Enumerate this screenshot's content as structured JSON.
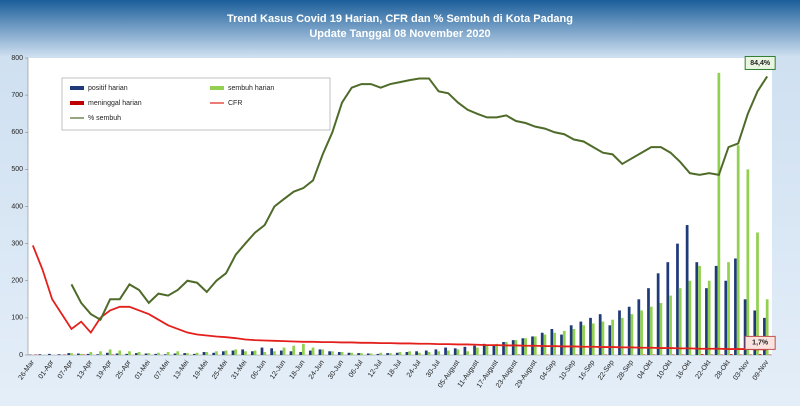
{
  "chart_data": {
    "type": "bar",
    "title": "Trend Kasus Covid 19 Harian, CFR dan % Sembuh di Kota Padang",
    "subtitle": "Update Tanggal 08 November  2020",
    "categories": [
      "26-Mar",
      null,
      "01-Apr",
      null,
      "07-Apr",
      null,
      "13-Apr",
      null,
      "19-Apr",
      null,
      "25-Apr",
      null,
      "01-Mei",
      null,
      "07-Mei",
      null,
      "13-Mei",
      null,
      "19-Mei",
      null,
      "25-Mei",
      null,
      "31-Mei",
      null,
      "06-Jun",
      null,
      "12-Jun",
      null,
      "18-Jun",
      null,
      "24-Jun",
      null,
      "30-Jun",
      null,
      "06-Jul",
      null,
      "12-Jul",
      null,
      "18-Jul",
      null,
      "24-Jul",
      null,
      "30-Jul",
      null,
      "05-August",
      null,
      "11-August",
      null,
      "17-August",
      null,
      "23-August",
      null,
      "29-August",
      null,
      "04-Sep",
      null,
      "10-Sep",
      null,
      "16-Sep",
      null,
      "22-Sep",
      null,
      "28-Sep",
      null,
      "04-Okt",
      null,
      "10-Okt",
      null,
      "16-Okt",
      null,
      "22-Okt",
      null,
      "28-Okt",
      null,
      "03-Nov",
      null,
      "09-Nov"
    ],
    "series": [
      {
        "name": "positif harian",
        "type": "bar",
        "color": "#1f3a78",
        "values": [
          1,
          2,
          3,
          2,
          5,
          4,
          3,
          2,
          6,
          4,
          3,
          5,
          4,
          3,
          2,
          4,
          5,
          3,
          8,
          6,
          10,
          12,
          15,
          10,
          20,
          18,
          12,
          10,
          8,
          12,
          15,
          10,
          8,
          6,
          5,
          4,
          3,
          5,
          6,
          8,
          10,
          12,
          15,
          20,
          18,
          22,
          25,
          30,
          28,
          35,
          40,
          45,
          50,
          60,
          70,
          55,
          80,
          90,
          100,
          110,
          80,
          120,
          130,
          150,
          180,
          220,
          250,
          300,
          350,
          250,
          180,
          240,
          200,
          260,
          150,
          120,
          100
        ]
      },
      {
        "name": "sembuh harian",
        "type": "bar",
        "color": "#92d050",
        "values": [
          0,
          0,
          0,
          0,
          5,
          3,
          8,
          10,
          15,
          12,
          10,
          8,
          5,
          6,
          8,
          10,
          5,
          6,
          8,
          10,
          12,
          15,
          10,
          12,
          8,
          10,
          20,
          25,
          30,
          20,
          15,
          10,
          8,
          6,
          5,
          4,
          6,
          5,
          8,
          10,
          6,
          8,
          10,
          12,
          15,
          10,
          20,
          25,
          30,
          35,
          40,
          45,
          50,
          55,
          60,
          65,
          70,
          80,
          85,
          90,
          95,
          100,
          110,
          120,
          130,
          140,
          160,
          180,
          200,
          240,
          200,
          760,
          250,
          565,
          500,
          330,
          150
        ]
      },
      {
        "name": "meninggal harian",
        "type": "bar",
        "color": "#c00000",
        "values": [
          1,
          0,
          0,
          1,
          0,
          1,
          0,
          0,
          1,
          0,
          0,
          0,
          0,
          0,
          0,
          0,
          0,
          0,
          0,
          0,
          0,
          0,
          0,
          0,
          0,
          0,
          0,
          0,
          0,
          0,
          0,
          0,
          0,
          0,
          0,
          0,
          0,
          0,
          0,
          0,
          0,
          0,
          0,
          0,
          0,
          0,
          0,
          0,
          0,
          0,
          1,
          0,
          0,
          1,
          0,
          0,
          1,
          0,
          0,
          1,
          0,
          1,
          0,
          1,
          1,
          0,
          1,
          1,
          0,
          2,
          1,
          1,
          2,
          1,
          1,
          2,
          1
        ]
      },
      {
        "name": "CFR",
        "type": "line",
        "axis": "y2",
        "color": "#e3201b",
        "values": [
          33.2,
          25.9,
          16.9,
          12.4,
          7.9,
          10.1,
          6.8,
          11.3,
          13.5,
          14.6,
          14.6,
          13.5,
          12.4,
          10.7,
          9.0,
          7.9,
          6.8,
          6.2,
          5.9,
          5.6,
          5.4,
          5.1,
          4.7,
          4.5,
          4.4,
          4.3,
          4.2,
          4.1,
          4.0,
          4.0,
          3.9,
          3.9,
          3.8,
          3.8,
          3.7,
          3.7,
          3.6,
          3.6,
          3.5,
          3.5,
          3.4,
          3.4,
          3.3,
          3.3,
          3.2,
          3.2,
          3.1,
          3.0,
          3.0,
          2.9,
          2.9,
          2.8,
          2.8,
          2.7,
          2.7,
          2.6,
          2.6,
          2.5,
          2.5,
          2.4,
          2.4,
          2.3,
          2.3,
          2.2,
          2.2,
          2.1,
          2.1,
          2.0,
          2.0,
          1.9,
          1.9,
          1.9,
          1.8,
          1.8,
          1.8,
          1.7,
          1.7
        ],
        "value_labels": [
          null,
          null,
          null,
          null,
          null,
          null,
          null,
          null,
          null,
          null,
          null,
          null,
          null,
          null,
          null,
          null,
          null,
          null,
          null,
          null,
          null,
          null,
          null,
          null,
          null,
          null,
          null,
          null,
          null,
          null,
          null,
          null,
          null,
          null,
          null,
          null,
          null,
          null,
          null,
          null,
          null,
          null,
          null,
          null,
          null,
          null,
          null,
          null,
          null,
          null,
          null,
          null,
          null,
          null,
          null,
          null,
          null,
          null,
          null,
          null,
          null,
          null,
          null,
          null,
          null,
          null,
          null,
          null,
          null,
          null,
          null,
          null,
          null,
          null,
          null,
          null,
          "1,7%"
        ]
      },
      {
        "name": "% sembuh",
        "type": "line",
        "axis": "y2",
        "color": "#4f6b2a",
        "values": [
          null,
          null,
          null,
          null,
          21.4,
          15.8,
          12.4,
          10.7,
          16.9,
          16.9,
          21.4,
          19.7,
          15.8,
          18.6,
          18.0,
          19.7,
          22.5,
          21.9,
          19.1,
          22.5,
          24.8,
          30.4,
          33.8,
          37.1,
          39.4,
          45.0,
          47.3,
          49.5,
          50.6,
          52.9,
          60.8,
          67.5,
          76.5,
          81.0,
          82.1,
          82.1,
          81.0,
          82.1,
          82.7,
          83.3,
          83.8,
          83.8,
          79.9,
          79.3,
          76.5,
          74.3,
          73.1,
          72.0,
          72.0,
          72.6,
          70.9,
          70.3,
          69.2,
          68.6,
          67.5,
          66.9,
          65.3,
          64.7,
          63.0,
          61.3,
          60.8,
          57.9,
          59.6,
          61.3,
          63.0,
          63.0,
          61.3,
          58.5,
          55.1,
          54.6,
          55.1,
          54.6,
          63.0,
          64.1,
          73.1,
          79.9,
          84.4
        ],
        "value_labels": [
          null,
          null,
          null,
          null,
          null,
          null,
          null,
          null,
          null,
          null,
          null,
          null,
          null,
          null,
          null,
          null,
          null,
          null,
          null,
          null,
          null,
          null,
          null,
          null,
          null,
          null,
          null,
          null,
          null,
          null,
          null,
          null,
          null,
          null,
          null,
          null,
          null,
          null,
          null,
          null,
          null,
          null,
          null,
          null,
          null,
          null,
          null,
          null,
          null,
          null,
          null,
          null,
          null,
          null,
          null,
          null,
          null,
          null,
          null,
          null,
          null,
          null,
          null,
          null,
          null,
          null,
          null,
          null,
          null,
          null,
          null,
          null,
          null,
          null,
          null,
          null,
          "84,4%"
        ]
      }
    ],
    "ylim": [
      0,
      800
    ],
    "yticks": [
      0,
      100,
      200,
      300,
      400,
      500,
      600,
      700,
      800
    ],
    "y2lim": [
      0,
      90
    ],
    "grid": false,
    "legend": "upper left"
  }
}
